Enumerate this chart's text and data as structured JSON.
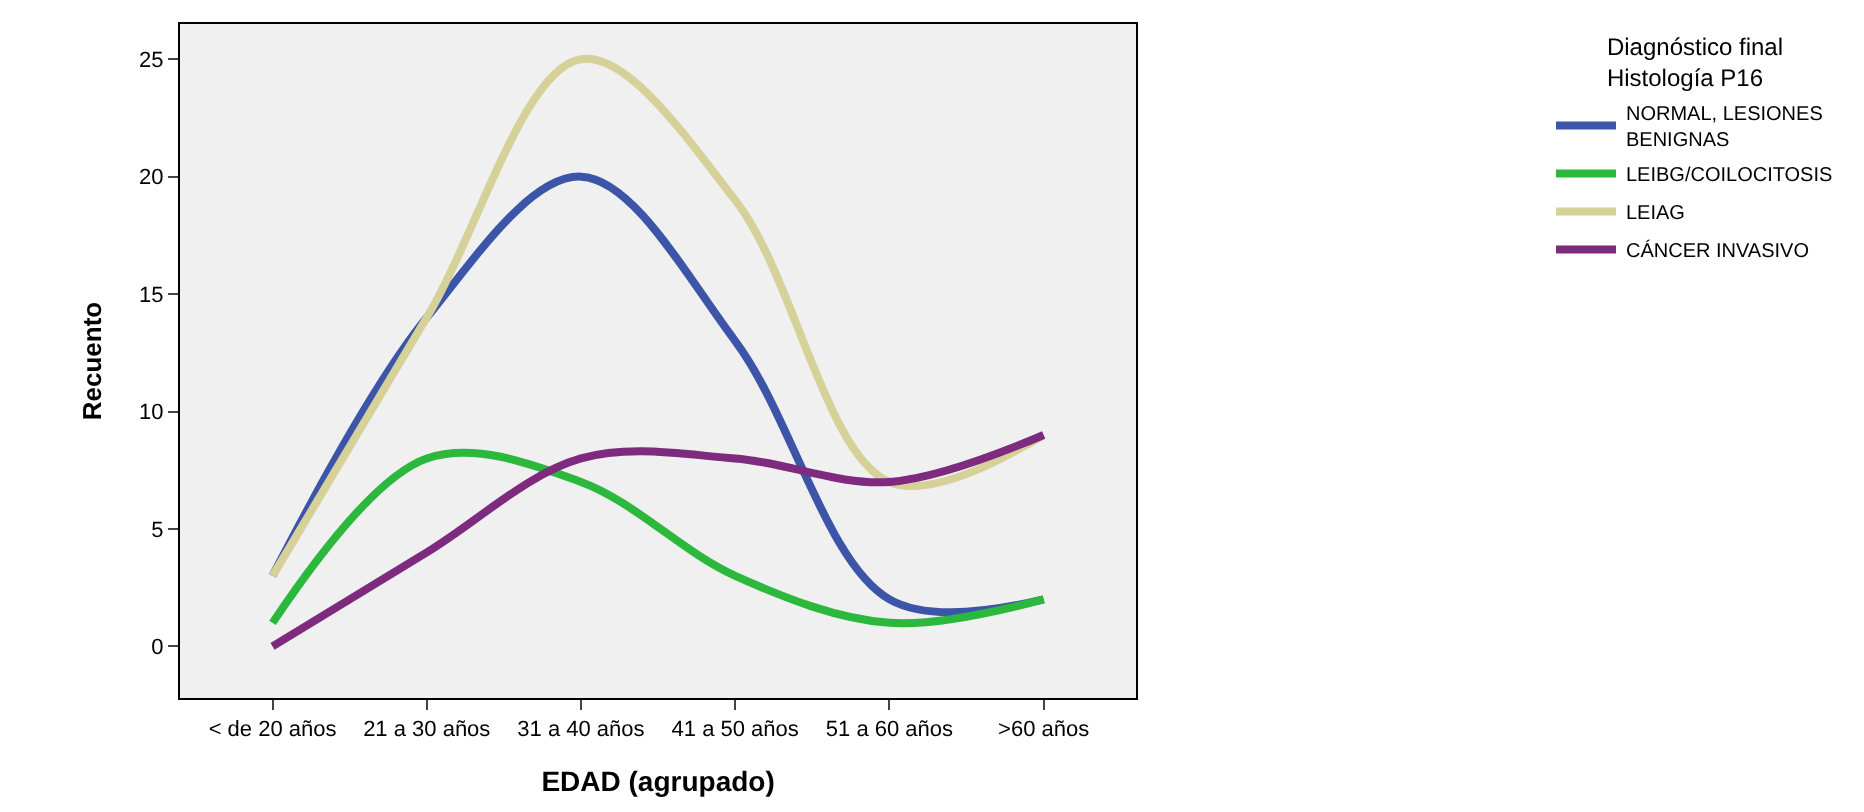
{
  "chart_data": {
    "type": "line",
    "xlabel": "EDAD (agrupado)",
    "ylabel": "Recuento",
    "legend_title": "Diagnóstico final\nHistología P16",
    "categories": [
      "< de 20 años",
      "21 a 30 años",
      "31 a 40 años",
      "41 a 50 años",
      "51 a 60 años",
      ">60 años"
    ],
    "series": [
      {
        "name": "NORMAL, LESIONES\nBENIGNAS",
        "color": "#3d55a8",
        "values": [
          3,
          14,
          20,
          13,
          2,
          2
        ]
      },
      {
        "name": "LEIBG/COILOCITOSIS",
        "color": "#2bb83c",
        "values": [
          1,
          8,
          7,
          3,
          1,
          2
        ]
      },
      {
        "name": "LEIAG",
        "color": "#d6d198",
        "values": [
          3,
          14,
          25,
          19,
          7,
          9
        ]
      },
      {
        "name": "CÁNCER INVASIVO",
        "color": "#7d2a7f",
        "values": [
          0,
          4,
          8,
          8,
          7,
          9
        ]
      }
    ],
    "ylim": [
      -2.2,
      26.5
    ],
    "yticks": [
      0,
      5,
      10,
      15,
      20,
      25
    ],
    "grid": false,
    "legend": "top right",
    "marker": "none",
    "line_style": "solid"
  }
}
